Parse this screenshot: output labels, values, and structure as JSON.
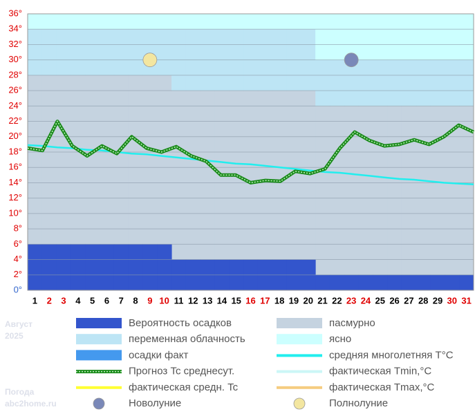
{
  "chart_data": {
    "type": "weather",
    "caption": [
      "Август",
      "2025",
      "Погода",
      "abc2home.ru"
    ],
    "categories": [
      "1",
      "2",
      "3",
      "4",
      "5",
      "6",
      "7",
      "8",
      "9",
      "10",
      "11",
      "12",
      "13",
      "14",
      "15",
      "16",
      "17",
      "18",
      "19",
      "20",
      "21",
      "22",
      "23",
      "24",
      "25",
      "26",
      "27",
      "28",
      "29",
      "30",
      "31"
    ],
    "category_colors": [
      "#000",
      "#e00000",
      "#e00000",
      "#000",
      "#000",
      "#000",
      "#000",
      "#000",
      "#e00000",
      "#e00000",
      "#000",
      "#000",
      "#000",
      "#000",
      "#000",
      "#e00000",
      "#e00000",
      "#000",
      "#000",
      "#000",
      "#000",
      "#000",
      "#e00000",
      "#e00000",
      "#000",
      "#000",
      "#000",
      "#000",
      "#000",
      "#e00000",
      "#e00000"
    ],
    "ylim": [
      0,
      36
    ],
    "yticks": [
      {
        "value": 0,
        "label": "0°"
      },
      {
        "value": 2,
        "label": "2°"
      },
      {
        "value": 4,
        "label": "4°"
      },
      {
        "value": 6,
        "label": "6°"
      },
      {
        "value": 8,
        "label": "8°"
      },
      {
        "value": 10,
        "label": "10°"
      },
      {
        "value": 12,
        "label": "12°"
      },
      {
        "value": 14,
        "label": "14°"
      },
      {
        "value": 16,
        "label": "16°"
      },
      {
        "value": 18,
        "label": "18°"
      },
      {
        "value": 20,
        "label": "20°"
      },
      {
        "value": 22,
        "label": "22°"
      },
      {
        "value": 24,
        "label": "24°"
      },
      {
        "value": 26,
        "label": "26°"
      },
      {
        "value": 28,
        "label": "28°"
      },
      {
        "value": 30,
        "label": "30°"
      },
      {
        "value": 32,
        "label": "32°"
      },
      {
        "value": 34,
        "label": "34°"
      },
      {
        "value": 36,
        "label": "36°"
      }
    ],
    "ytick_color": "#e00000",
    "zero_tick_color": "#3366cc",
    "grid": true,
    "sky": [
      {
        "name": "пасмурно",
        "color": "#c5d3e0",
        "values": [
          28,
          28,
          28,
          28,
          28,
          28,
          28,
          28,
          28,
          28,
          26,
          26,
          26,
          26,
          26,
          26,
          26,
          26,
          26,
          26,
          24,
          24,
          24,
          24,
          24,
          24,
          24,
          24,
          24,
          24,
          24
        ]
      },
      {
        "name": "переменная облачность",
        "color": "#bde5f5",
        "values": [
          6,
          6,
          6,
          6,
          6,
          6,
          6,
          6,
          6,
          6,
          8,
          8,
          8,
          8,
          8,
          8,
          8,
          8,
          8,
          8,
          6,
          6,
          6,
          6,
          6,
          6,
          6,
          6,
          6,
          6,
          6
        ]
      },
      {
        "name": "ясно",
        "color": "#ccffff",
        "values": [
          2,
          2,
          2,
          2,
          2,
          2,
          2,
          2,
          2,
          2,
          2,
          2,
          2,
          2,
          2,
          2,
          2,
          2,
          2,
          2,
          6,
          6,
          6,
          6,
          6,
          6,
          6,
          6,
          6,
          6,
          6
        ]
      }
    ],
    "precipitation": {
      "name": "Вероятность осадков",
      "color": "#3355cc",
      "values": [
        6,
        6,
        6,
        6,
        6,
        6,
        6,
        6,
        6,
        6,
        4,
        4,
        4,
        4,
        4,
        4,
        4,
        4,
        4,
        4,
        2,
        2,
        2,
        2,
        2,
        2,
        2,
        2,
        2,
        2,
        2
      ]
    },
    "lines": [
      {
        "name": "средняя многолетняя T°C",
        "color": "#22eeee",
        "style": "solid",
        "values": [
          18.9,
          18.8,
          18.6,
          18.5,
          18.3,
          18.2,
          18.0,
          17.8,
          17.7,
          17.5,
          17.3,
          17.1,
          16.9,
          16.7,
          16.5,
          16.4,
          16.2,
          16.0,
          15.8,
          15.6,
          15.4,
          15.3,
          15.1,
          14.9,
          14.7,
          14.5,
          14.4,
          14.2,
          14.0,
          13.9,
          13.8
        ]
      },
      {
        "name": "Прогноз Tc среднесут.",
        "color": "#1a8a1a",
        "style": "checked",
        "values": [
          18.5,
          18.2,
          22.0,
          18.8,
          17.5,
          18.8,
          17.8,
          20.0,
          18.5,
          18.0,
          18.7,
          17.5,
          16.8,
          15.0,
          15.0,
          14.0,
          14.3,
          14.2,
          15.5,
          15.2,
          15.8,
          18.5,
          20.6,
          19.5,
          18.8,
          19.0,
          19.6,
          19.0,
          20.0,
          21.5,
          20.6
        ]
      }
    ],
    "moons": [
      {
        "name": "Полнолуние",
        "color": "#f3e6a0",
        "day": 9,
        "y": 30
      },
      {
        "name": "Новолуние",
        "color": "#7a88b8",
        "day": 23,
        "y": 30
      }
    ],
    "legend": [
      {
        "name": "Вероятность осадков",
        "color": "#3355cc",
        "kind": "box"
      },
      {
        "name": "пасмурно",
        "color": "#c5d3e0",
        "kind": "box"
      },
      {
        "name": "переменная облачность",
        "color": "#bde5f5",
        "kind": "box"
      },
      {
        "name": "ясно",
        "color": "#ccffff",
        "kind": "box"
      },
      {
        "name": "осадки факт",
        "color": "#4499ee",
        "kind": "box"
      },
      {
        "name": "средняя многолетняя T°C",
        "color": "#22eeee",
        "kind": "line"
      },
      {
        "name": "Прогноз Tc среднесут.",
        "color": "#1a8a1a",
        "kind": "checked"
      },
      {
        "name": "фактическая Tmin,°C",
        "color": "#ccf6f6",
        "kind": "line"
      },
      {
        "name": "фактическая средн. Tc",
        "color": "#ffff33",
        "kind": "line"
      },
      {
        "name": "фактическая Tmax,°C",
        "color": "#f5cc80",
        "kind": "line"
      },
      {
        "name": "Новолуние",
        "color": "#7a88b8",
        "kind": "moon"
      },
      {
        "name": "Полнолуние",
        "color": "#f3e6a0",
        "kind": "moon"
      }
    ]
  }
}
